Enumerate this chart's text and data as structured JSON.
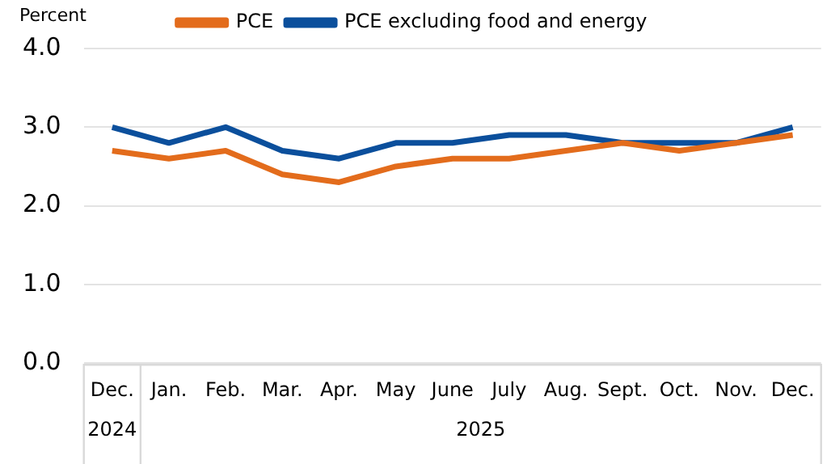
{
  "chart_data": {
    "type": "line",
    "ylabel": "Percent",
    "categories": [
      "Dec.",
      "Jan.",
      "Feb.",
      "Mar.",
      "Apr.",
      "May",
      "June",
      "July",
      "Aug.",
      "Sept.",
      "Oct.",
      "Nov.",
      "Dec."
    ],
    "series": [
      {
        "name": "PCE",
        "color": "#e36c1c",
        "values": [
          2.7,
          2.6,
          2.7,
          2.4,
          2.3,
          2.5,
          2.6,
          2.6,
          2.7,
          2.8,
          2.7,
          2.8,
          2.9
        ]
      },
      {
        "name": "PCE excluding food and energy",
        "color": "#0b4f9c",
        "values": [
          3.0,
          2.8,
          3.0,
          2.7,
          2.6,
          2.8,
          2.8,
          2.9,
          2.9,
          2.8,
          2.8,
          2.8,
          3.0
        ]
      }
    ],
    "ylim": [
      0,
      4
    ],
    "yticks": [
      {
        "value": 0,
        "label": "0.0"
      },
      {
        "value": 1,
        "label": "1.0"
      },
      {
        "value": 2,
        "label": "2.0"
      },
      {
        "value": 3,
        "label": "3.0"
      },
      {
        "value": 4,
        "label": "4.0"
      }
    ],
    "grid": "y",
    "legend": "top",
    "marker": "none",
    "line_style": "solid",
    "annotations": [
      "2024",
      "2025"
    ]
  }
}
